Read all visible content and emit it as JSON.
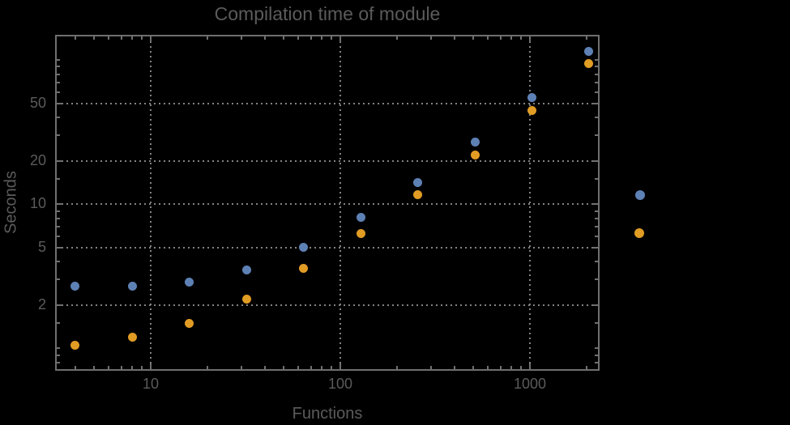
{
  "styles": {
    "background": "#000000",
    "text_color": "#5b5b5b",
    "frame_color": "#6f6f6f",
    "grid_color": "#828282"
  },
  "chart_data": {
    "type": "scatter",
    "title": "Compilation time of module",
    "xlabel": "Functions",
    "ylabel": "Seconds",
    "xscale": "log",
    "yscale": "log",
    "xlim": [
      3.13,
      2330
    ],
    "ylim": [
      0.7,
      150
    ],
    "grid": true,
    "grid_style": "dotted",
    "x_major_ticks": [
      10,
      100,
      1000
    ],
    "x_major_labels": [
      "10",
      "100",
      "1000"
    ],
    "x_minor_ticks": [
      4,
      5,
      6,
      7,
      8,
      9,
      20,
      30,
      40,
      50,
      60,
      70,
      80,
      90,
      200,
      300,
      400,
      500,
      600,
      700,
      800,
      900,
      2000
    ],
    "y_major_ticks": [
      2,
      5,
      10,
      20,
      50
    ],
    "y_major_labels": [
      "2",
      "5",
      "10",
      "20",
      "50"
    ],
    "y_minor_ticks": [
      0.8,
      0.9,
      1,
      1.5,
      3,
      4,
      6,
      7,
      8,
      9,
      15,
      30,
      40,
      60,
      70,
      80,
      90,
      100
    ],
    "x": [
      4,
      8,
      16,
      32,
      64,
      128,
      256,
      512,
      1024,
      2048
    ],
    "series": [
      {
        "name": "",
        "color": "#5e81b5",
        "marker": "circle",
        "values": [
          2.7,
          2.7,
          2.9,
          3.5,
          5.0,
          8.1,
          14.2,
          26.9,
          55,
          115
        ]
      },
      {
        "name": "",
        "color": "#e19c24",
        "marker": "circle",
        "values": [
          1.05,
          1.2,
          1.5,
          2.2,
          3.6,
          6.25,
          11.6,
          22,
          45,
          95
        ]
      }
    ],
    "legend": {
      "position": "right-of-plot",
      "entries": [
        {
          "label": "",
          "color": "#5e81b5"
        },
        {
          "label": "",
          "color": "#e19c24"
        }
      ]
    }
  }
}
